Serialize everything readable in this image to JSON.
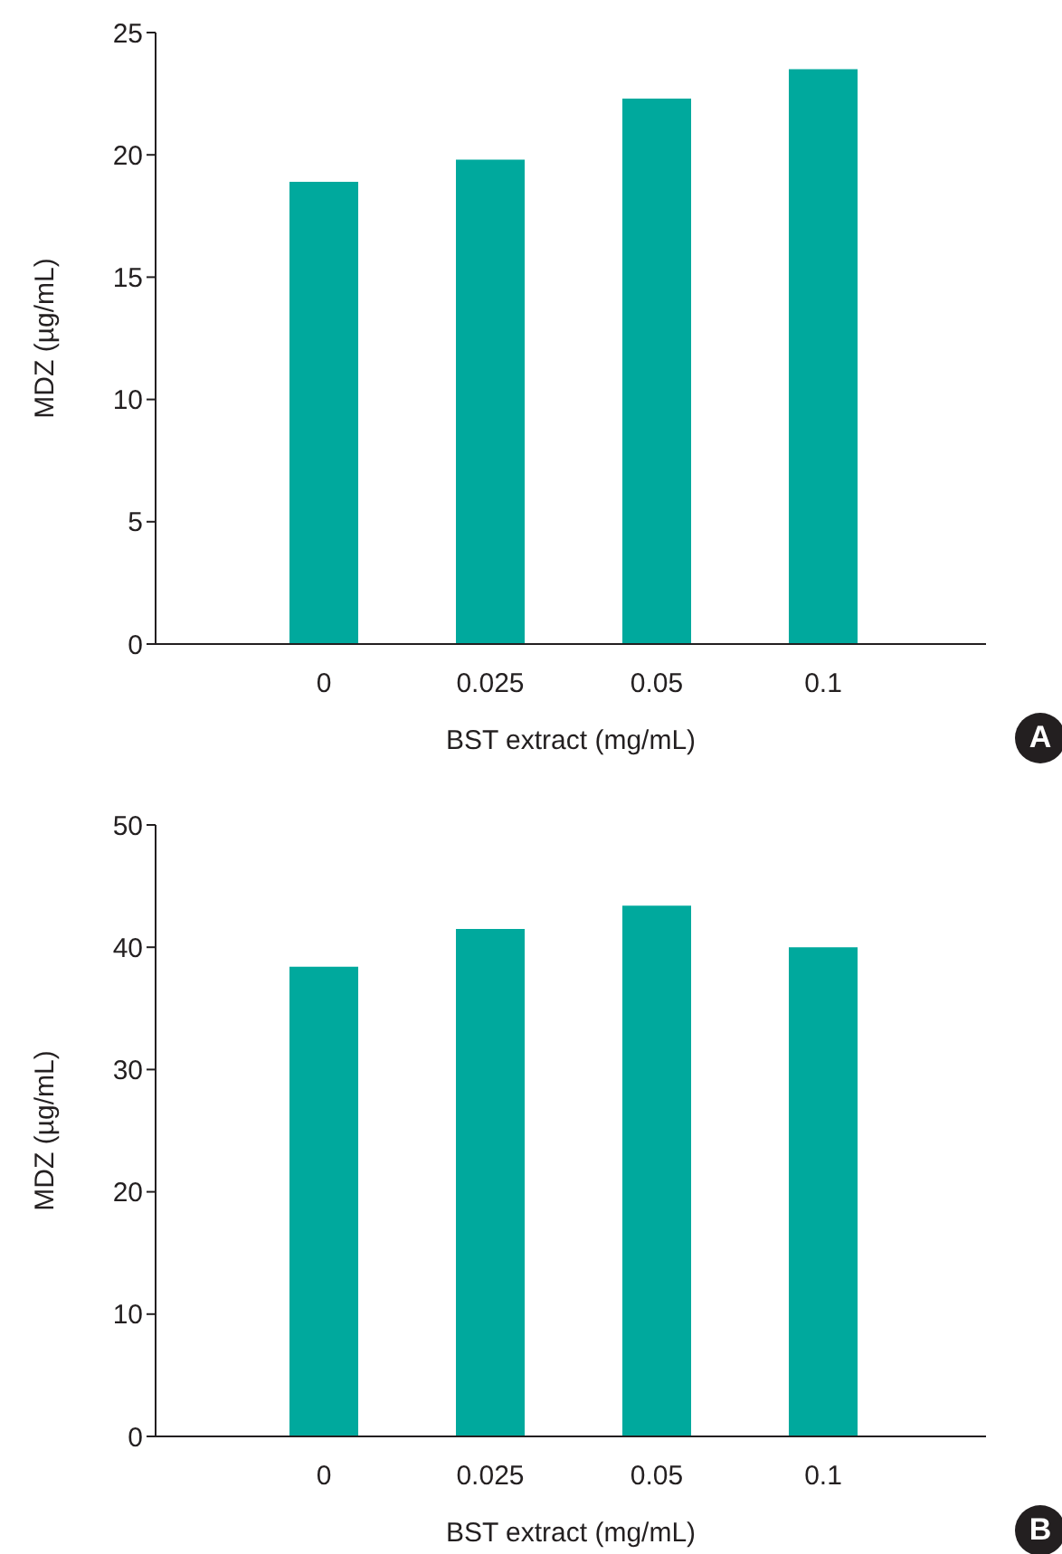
{
  "chart_data": [
    {
      "type": "bar",
      "xlabel": "BST extract (mg/mL)",
      "ylabel": "MDZ (µg/mL)",
      "categories": [
        "0",
        "0.025",
        "0.05",
        "0.1"
      ],
      "values": [
        18.9,
        19.8,
        22.3,
        23.5
      ],
      "color": "#00a99d",
      "ylim": [
        0,
        25
      ],
      "yticks": [
        0,
        5,
        10,
        15,
        20,
        25
      ],
      "grid": false,
      "legend": false,
      "annotations": [
        "A"
      ]
    },
    {
      "type": "bar",
      "xlabel": "BST extract (mg/mL)",
      "ylabel": "MDZ (µg/mL)",
      "categories": [
        "0",
        "0.025",
        "0.05",
        "0.1"
      ],
      "values": [
        38.4,
        41.5,
        43.4,
        40.0
      ],
      "color": "#00a99d",
      "ylim": [
        0,
        50
      ],
      "yticks": [
        0,
        10,
        20,
        30,
        40,
        50
      ],
      "grid": false,
      "legend": false,
      "annotations": [
        "B"
      ]
    }
  ]
}
